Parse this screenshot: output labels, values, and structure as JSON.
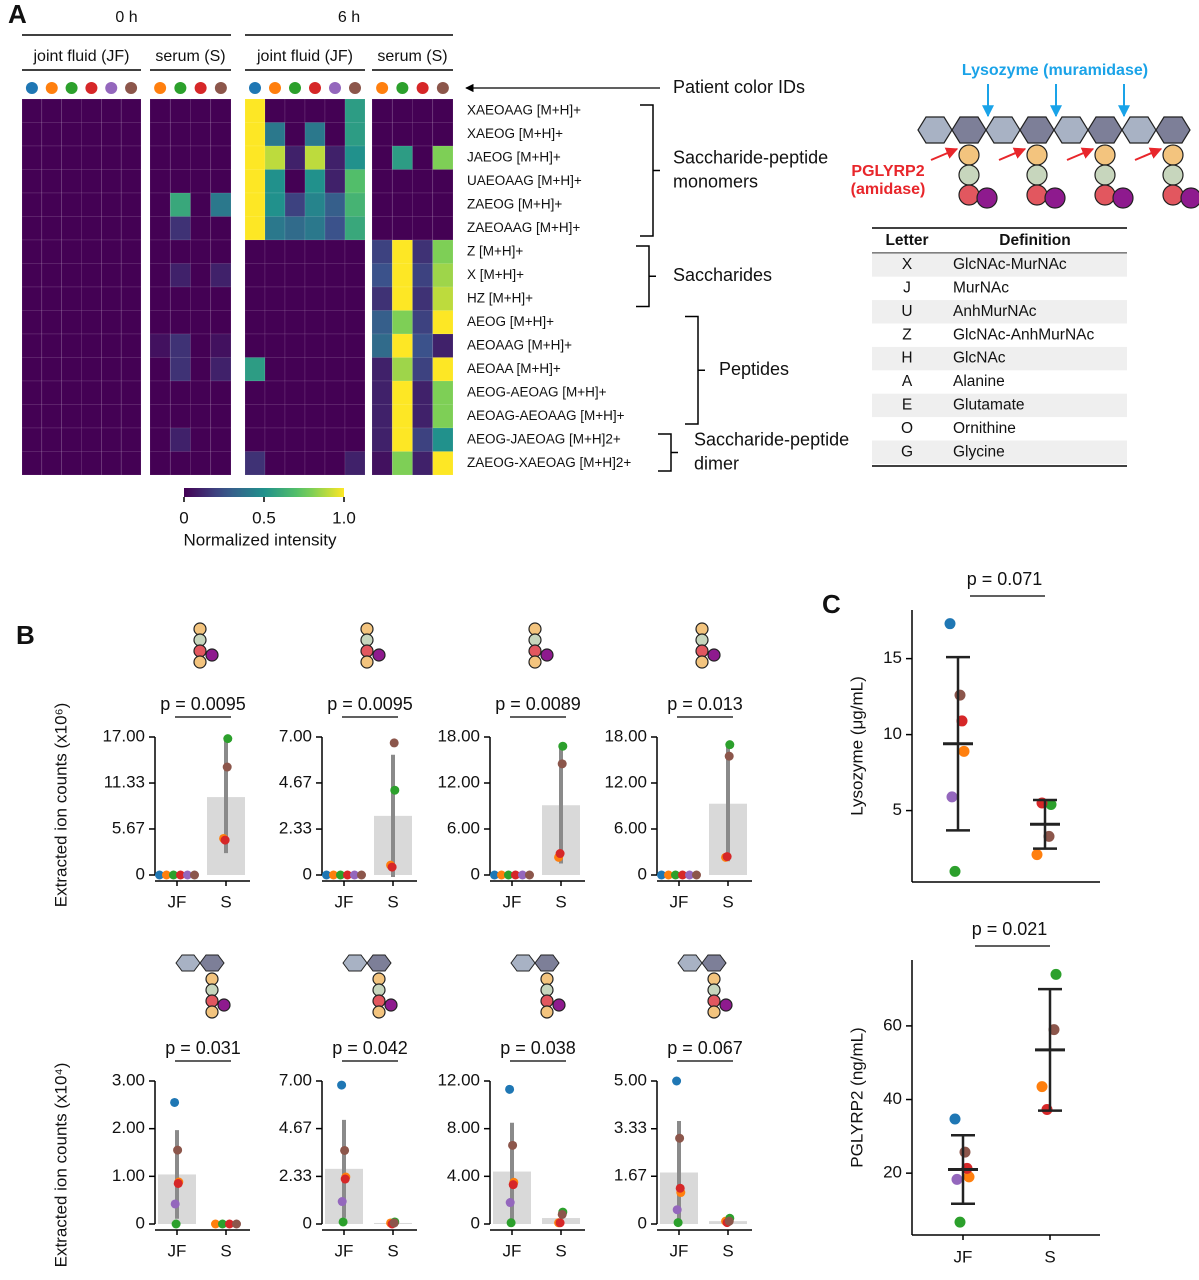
{
  "panel_labels": [
    "A",
    "B",
    "C"
  ],
  "panel_b_y_labels": [
    "Extracted ion counts (x10⁶)",
    "Extracted ion counts (x10⁴)"
  ],
  "diagram": {
    "lysozyme": "Lysozyme (muramidase)",
    "pglyrp2": [
      "PGLYRP2",
      "(amidase)"
    ]
  },
  "letter_table": {
    "header": [
      "Letter",
      "Definition"
    ],
    "rows": [
      [
        "X",
        "GlcNAc-MurNAc"
      ],
      [
        "J",
        "MurNAc"
      ],
      [
        "U",
        "AnhMurNAc"
      ],
      [
        "Z",
        "GlcNAc-AnhMurNAc"
      ],
      [
        "H",
        "GlcNAc"
      ],
      [
        "A",
        "Alanine"
      ],
      [
        "E",
        "Glutamate"
      ],
      [
        "O",
        "Ornithine"
      ],
      [
        "G",
        "Glycine"
      ]
    ]
  },
  "chart_data": [
    {
      "type": "heatmap",
      "time_labels": [
        "0 h",
        "6 h"
      ],
      "sample_labels": [
        "joint fluid (JF)",
        "serum (S)",
        "joint fluid (JF)",
        "serum (S)"
      ],
      "annotation": "Patient color IDs",
      "column_colors": [
        "#1f77b4",
        "#ff7f0e",
        "#2ca02c",
        "#d62728",
        "#9467bd",
        "#8c564b",
        "#ff7f0e",
        "#2ca02c",
        "#d62728",
        "#8c564b",
        "#1f77b4",
        "#ff7f0e",
        "#2ca02c",
        "#d62728",
        "#9467bd",
        "#8c564b",
        "#ff7f0e",
        "#2ca02c",
        "#d62728",
        "#8c564b"
      ],
      "rows": [
        "XAEOAAG  [M+H]+",
        "XAEOG  [M+H]+",
        "JAEOG  [M+H]+",
        "UAEOAAG  [M+H]+",
        "ZAEOG  [M+H]+",
        "ZAEOAAG  [M+H]+",
        "Z  [M+H]+",
        "X  [M+H]+",
        "HZ  [M+H]+",
        "AEOG  [M+H]+",
        "AEOAAG  [M+H]+",
        "AEOAA  [M+H]+",
        "AEOG-AEOAG  [M+H]+",
        "AEOAG-AEOAAG  [M+H]+",
        "AEOG-JAEOAG  [M+H]2+",
        "ZAEOG-XAEOAG  [M+H]2+"
      ],
      "row_groups": [
        [
          "Saccharide-peptide",
          "monomers"
        ],
        [
          "Saccharides"
        ],
        [
          "Peptides"
        ],
        [
          "Saccharide-peptide",
          "dimer"
        ]
      ],
      "values": [
        [
          0,
          0,
          0,
          0,
          0,
          0,
          0,
          0,
          0,
          0,
          1,
          0,
          0,
          0,
          0,
          0.55,
          0,
          0,
          0,
          0
        ],
        [
          0,
          0,
          0,
          0,
          0,
          0,
          0,
          0,
          0,
          0,
          1,
          0.4,
          0,
          0.4,
          0,
          0.55,
          0,
          0,
          0,
          0
        ],
        [
          0,
          0,
          0,
          0,
          0,
          0,
          0,
          0,
          0,
          0,
          1,
          0.9,
          0.1,
          0.9,
          0.1,
          0.5,
          0,
          0.55,
          0,
          0.8
        ],
        [
          0,
          0,
          0,
          0,
          0,
          0,
          0,
          0,
          0,
          0,
          1,
          0.5,
          0,
          0.5,
          0.1,
          0.7,
          0,
          0,
          0,
          0
        ],
        [
          0,
          0,
          0,
          0,
          0,
          0,
          0,
          0.6,
          0,
          0.4,
          1,
          0.5,
          0.2,
          0.45,
          0.3,
          0.65,
          0,
          0,
          0,
          0
        ],
        [
          0,
          0,
          0,
          0,
          0,
          0,
          0,
          0.15,
          0,
          0,
          1,
          0.4,
          0.35,
          0.4,
          0.25,
          0.6,
          0,
          0,
          0,
          0
        ],
        [
          0,
          0,
          0,
          0,
          0,
          0,
          0,
          0,
          0,
          0,
          0,
          0,
          0,
          0,
          0,
          0,
          0.2,
          1,
          0.15,
          0.8
        ],
        [
          0,
          0,
          0,
          0,
          0,
          0,
          0,
          0.1,
          0,
          0.1,
          0,
          0,
          0,
          0,
          0,
          0,
          0.25,
          1,
          0.2,
          0.85
        ],
        [
          0,
          0,
          0,
          0,
          0,
          0,
          0,
          0,
          0,
          0,
          0,
          0,
          0,
          0,
          0,
          0,
          0.15,
          1,
          0.15,
          0.9
        ],
        [
          0,
          0,
          0,
          0,
          0,
          0,
          0,
          0,
          0,
          0,
          0,
          0,
          0,
          0,
          0,
          0,
          0.3,
          0.8,
          0.2,
          1
        ],
        [
          0,
          0,
          0,
          0,
          0,
          0,
          0.05,
          0.15,
          0,
          0.05,
          0,
          0,
          0,
          0,
          0,
          0,
          0.35,
          1,
          0.25,
          0.1
        ],
        [
          0,
          0,
          0,
          0,
          0,
          0,
          0,
          0.15,
          0,
          0.1,
          0.55,
          0,
          0,
          0,
          0,
          0,
          0.1,
          0.85,
          0.2,
          1
        ],
        [
          0,
          0,
          0,
          0,
          0,
          0,
          0,
          0,
          0,
          0,
          0,
          0,
          0,
          0,
          0,
          0,
          0.1,
          1,
          0.1,
          0.8
        ],
        [
          0,
          0,
          0,
          0,
          0,
          0,
          0,
          0,
          0,
          0,
          0,
          0,
          0,
          0,
          0,
          0,
          0.1,
          1,
          0.1,
          0.8
        ],
        [
          0,
          0,
          0,
          0,
          0,
          0,
          0,
          0.1,
          0,
          0,
          0,
          0,
          0,
          0,
          0,
          0,
          0.1,
          1,
          0.2,
          0.5
        ],
        [
          0,
          0,
          0,
          0,
          0,
          0,
          0,
          0,
          0,
          0,
          0.15,
          0,
          0,
          0,
          0,
          0.1,
          0.05,
          0.8,
          0.1,
          1
        ]
      ],
      "colorbar": {
        "label": "Normalized intensity",
        "lim": [
          0,
          1
        ],
        "ticks": [
          0,
          0.5,
          {
            "value": 1,
            "label": "1.0"
          }
        ]
      }
    },
    {
      "type": "bar",
      "annotation": "p = 0.0095",
      "ylim": [
        0,
        17
      ],
      "yticks": [
        0,
        5.67,
        11.33,
        {
          "value": 17,
          "label": "17.00"
        }
      ],
      "groups": [
        {
          "category": "JF",
          "mean": 0,
          "points": [
            0,
            0,
            0,
            0,
            0,
            0
          ],
          "colors": [
            "#1f77b4",
            "#ff7f0e",
            "#2ca02c",
            "#d62728",
            "#9467bd",
            "#8c564b"
          ]
        },
        {
          "category": "S",
          "mean": 9.6,
          "sd": 6.9,
          "points": [
            4.5,
            16.8,
            4.3,
            13.3
          ],
          "colors": [
            "#ff7f0e",
            "#2ca02c",
            "#d62728",
            "#8c564b"
          ]
        }
      ]
    },
    {
      "type": "bar",
      "annotation": "p = 0.0095",
      "ylim": [
        0,
        7
      ],
      "yticks": [
        0,
        2.33,
        4.67,
        {
          "value": 7,
          "label": "7.00"
        }
      ],
      "groups": [
        {
          "category": "JF",
          "mean": 0,
          "points": [
            0,
            0,
            0,
            0,
            0,
            0
          ],
          "colors": [
            "#1f77b4",
            "#ff7f0e",
            "#2ca02c",
            "#d62728",
            "#9467bd",
            "#8c564b"
          ]
        },
        {
          "category": "S",
          "mean": 3.0,
          "sd": 3.1,
          "points": [
            0.5,
            4.3,
            0.4,
            6.7
          ],
          "colors": [
            "#ff7f0e",
            "#2ca02c",
            "#d62728",
            "#8c564b"
          ]
        }
      ]
    },
    {
      "type": "bar",
      "annotation": "p = 0.0089",
      "ylim": [
        0,
        18
      ],
      "yticks": [
        0,
        {
          "value": 6,
          "label": "6.00"
        },
        {
          "value": 12,
          "label": "12.00"
        },
        {
          "value": 18,
          "label": "18.00"
        }
      ],
      "groups": [
        {
          "category": "JF",
          "mean": 0,
          "points": [
            0,
            0,
            0,
            0,
            0,
            0
          ],
          "colors": [
            "#1f77b4",
            "#ff7f0e",
            "#2ca02c",
            "#d62728",
            "#9467bd",
            "#8c564b"
          ]
        },
        {
          "category": "S",
          "mean": 9.1,
          "sd": 7.6,
          "points": [
            2.3,
            16.8,
            2.8,
            14.5
          ],
          "colors": [
            "#ff7f0e",
            "#2ca02c",
            "#d62728",
            "#8c564b"
          ]
        }
      ]
    },
    {
      "type": "bar",
      "annotation": "p = 0.013",
      "ylim": [
        0,
        18
      ],
      "yticks": [
        0,
        {
          "value": 6,
          "label": "6.00"
        },
        {
          "value": 12,
          "label": "12.00"
        },
        {
          "value": 18,
          "label": "18.00"
        }
      ],
      "groups": [
        {
          "category": "JF",
          "mean": 0,
          "points": [
            0,
            0,
            0,
            0,
            0,
            0
          ],
          "colors": [
            "#1f77b4",
            "#ff7f0e",
            "#2ca02c",
            "#d62728",
            "#9467bd",
            "#8c564b"
          ]
        },
        {
          "category": "S",
          "mean": 9.3,
          "sd": 7.5,
          "points": [
            2.3,
            17,
            2.4,
            15.5
          ],
          "colors": [
            "#ff7f0e",
            "#2ca02c",
            "#d62728",
            "#8c564b"
          ]
        }
      ]
    },
    {
      "type": "bar",
      "annotation": "p = 0.031",
      "ylim": [
        0,
        3
      ],
      "yticks": [
        0,
        {
          "value": 1,
          "label": "1.00"
        },
        {
          "value": 2,
          "label": "2.00"
        },
        {
          "value": 3,
          "label": "3.00"
        }
      ],
      "groups": [
        {
          "category": "JF",
          "mean": 1.04,
          "sd": 0.93,
          "points": [
            2.55,
            0.88,
            0,
            0.85,
            0.42,
            1.55
          ],
          "colors": [
            "#1f77b4",
            "#ff7f0e",
            "#2ca02c",
            "#d62728",
            "#9467bd",
            "#8c564b"
          ]
        },
        {
          "category": "S",
          "mean": 0,
          "points": [
            0,
            0,
            0,
            0
          ],
          "colors": [
            "#ff7f0e",
            "#2ca02c",
            "#d62728",
            "#8c564b"
          ]
        }
      ]
    },
    {
      "type": "bar",
      "annotation": "p = 0.042",
      "ylim": [
        0,
        7
      ],
      "yticks": [
        0,
        2.33,
        4.67,
        {
          "value": 7,
          "label": "7.00"
        }
      ],
      "groups": [
        {
          "category": "JF",
          "mean": 2.7,
          "sd": 2.4,
          "points": [
            6.8,
            2.3,
            0.1,
            2.2,
            1.1,
            3.6
          ],
          "colors": [
            "#1f77b4",
            "#ff7f0e",
            "#2ca02c",
            "#d62728",
            "#9467bd",
            "#8c564b"
          ]
        },
        {
          "category": "S",
          "mean": 0.05,
          "points": [
            0.05,
            0.1,
            0,
            0.05
          ],
          "colors": [
            "#ff7f0e",
            "#2ca02c",
            "#d62728",
            "#8c564b"
          ]
        }
      ]
    },
    {
      "type": "bar",
      "annotation": "p = 0.038",
      "ylim": [
        0,
        12
      ],
      "yticks": [
        0,
        {
          "value": 4,
          "label": "4.00"
        },
        {
          "value": 8,
          "label": "8.00"
        },
        {
          "value": 12,
          "label": "12.00"
        }
      ],
      "groups": [
        {
          "category": "JF",
          "mean": 4.4,
          "sd": 4.1,
          "points": [
            11.3,
            3.5,
            0.1,
            3.3,
            1.8,
            6.6
          ],
          "colors": [
            "#1f77b4",
            "#ff7f0e",
            "#2ca02c",
            "#d62728",
            "#9467bd",
            "#8c564b"
          ]
        },
        {
          "category": "S",
          "mean": 0.5,
          "points": [
            0.1,
            1.0,
            0.1,
            0.8
          ],
          "colors": [
            "#ff7f0e",
            "#2ca02c",
            "#d62728",
            "#8c564b"
          ]
        }
      ]
    },
    {
      "type": "bar",
      "annotation": "p = 0.067",
      "ylim": [
        0,
        5
      ],
      "yticks": [
        0,
        1.67,
        3.33,
        {
          "value": 5,
          "label": "5.00"
        }
      ],
      "groups": [
        {
          "category": "JF",
          "mean": 1.8,
          "sd": 1.8,
          "points": [
            5.0,
            1.1,
            0.05,
            1.25,
            0.5,
            3.0
          ],
          "colors": [
            "#1f77b4",
            "#ff7f0e",
            "#2ca02c",
            "#d62728",
            "#9467bd",
            "#8c564b"
          ]
        },
        {
          "category": "S",
          "mean": 0.1,
          "points": [
            0.1,
            0.2,
            0.05,
            0.1
          ],
          "colors": [
            "#ff7f0e",
            "#2ca02c",
            "#d62728",
            "#8c564b"
          ]
        }
      ]
    },
    {
      "type": "dot_mean_sd",
      "annotation": "p = 0.071",
      "y_label": "Lysozyme (μg/mL)",
      "ylim": [
        0.3,
        18.2
      ],
      "yticks": [
        5,
        10,
        15
      ],
      "groups": [
        {
          "category": null,
          "mean": 9.4,
          "sd": 5.7,
          "points": [
            17.3,
            8.9,
            1.0,
            10.9,
            5.9,
            12.6
          ],
          "colors": [
            "#1f77b4",
            "#ff7f0e",
            "#2ca02c",
            "#d62728",
            "#9467bd",
            "#8c564b"
          ]
        },
        {
          "category": null,
          "mean": 4.1,
          "sd": 1.6,
          "points": [
            2.1,
            5.4,
            5.5,
            3.3
          ],
          "colors": [
            "#ff7f0e",
            "#2ca02c",
            "#d62728",
            "#8c564b"
          ]
        }
      ]
    },
    {
      "type": "dot_mean_sd",
      "annotation": "p = 0.021",
      "y_label": "PGLYRP2 (ng/mL)",
      "ylim": [
        3.2,
        77.9
      ],
      "yticks": [
        20,
        40,
        60
      ],
      "groups": [
        {
          "category": "JF",
          "mean": 21,
          "sd": 9.3,
          "points": [
            34.7,
            19,
            6.7,
            21.3,
            18.3,
            25.7
          ],
          "colors": [
            "#1f77b4",
            "#ff7f0e",
            "#2ca02c",
            "#d62728",
            "#9467bd",
            "#8c564b"
          ]
        },
        {
          "category": "S",
          "mean": 53.5,
          "sd": 16.5,
          "points": [
            43.5,
            74,
            37.3,
            59
          ],
          "colors": [
            "#ff7f0e",
            "#2ca02c",
            "#d62728",
            "#8c564b"
          ]
        }
      ]
    }
  ]
}
